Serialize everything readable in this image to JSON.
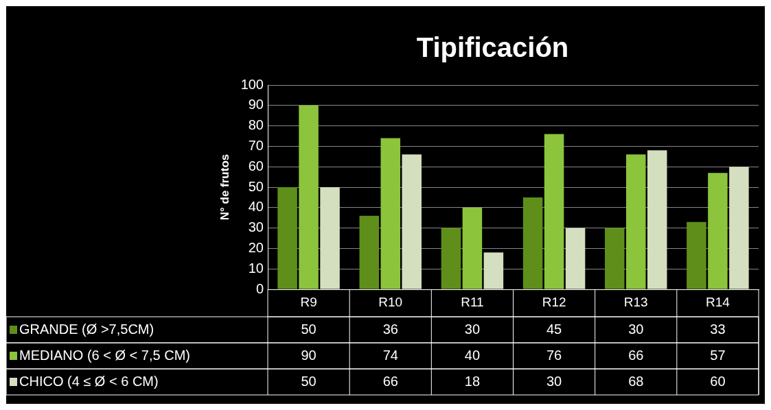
{
  "chart_data": {
    "type": "bar",
    "title": "Tipificación",
    "ylabel": "N° de frutos",
    "categories": [
      "R9",
      "R10",
      "R11",
      "R12",
      "R13",
      "R14"
    ],
    "series": [
      {
        "name": "GRANDE (Ø >7,5CM)",
        "color": "#5f8f1a",
        "values": [
          50,
          36,
          30,
          45,
          30,
          33
        ]
      },
      {
        "name": "MEDIANO (6 < Ø < 7,5 CM)",
        "color": "#8cc43c",
        "values": [
          90,
          74,
          40,
          76,
          66,
          57
        ]
      },
      {
        "name": "CHICO (4 ≤ Ø < 6 CM)",
        "color": "#d4dfc0",
        "values": [
          50,
          66,
          18,
          30,
          68,
          60
        ]
      }
    ],
    "ylim": [
      0,
      100
    ],
    "yticks": [
      0,
      10,
      20,
      30,
      40,
      50,
      60,
      70,
      80,
      90,
      100
    ],
    "grid": "y",
    "legend": "bottom",
    "data_labels": true
  }
}
